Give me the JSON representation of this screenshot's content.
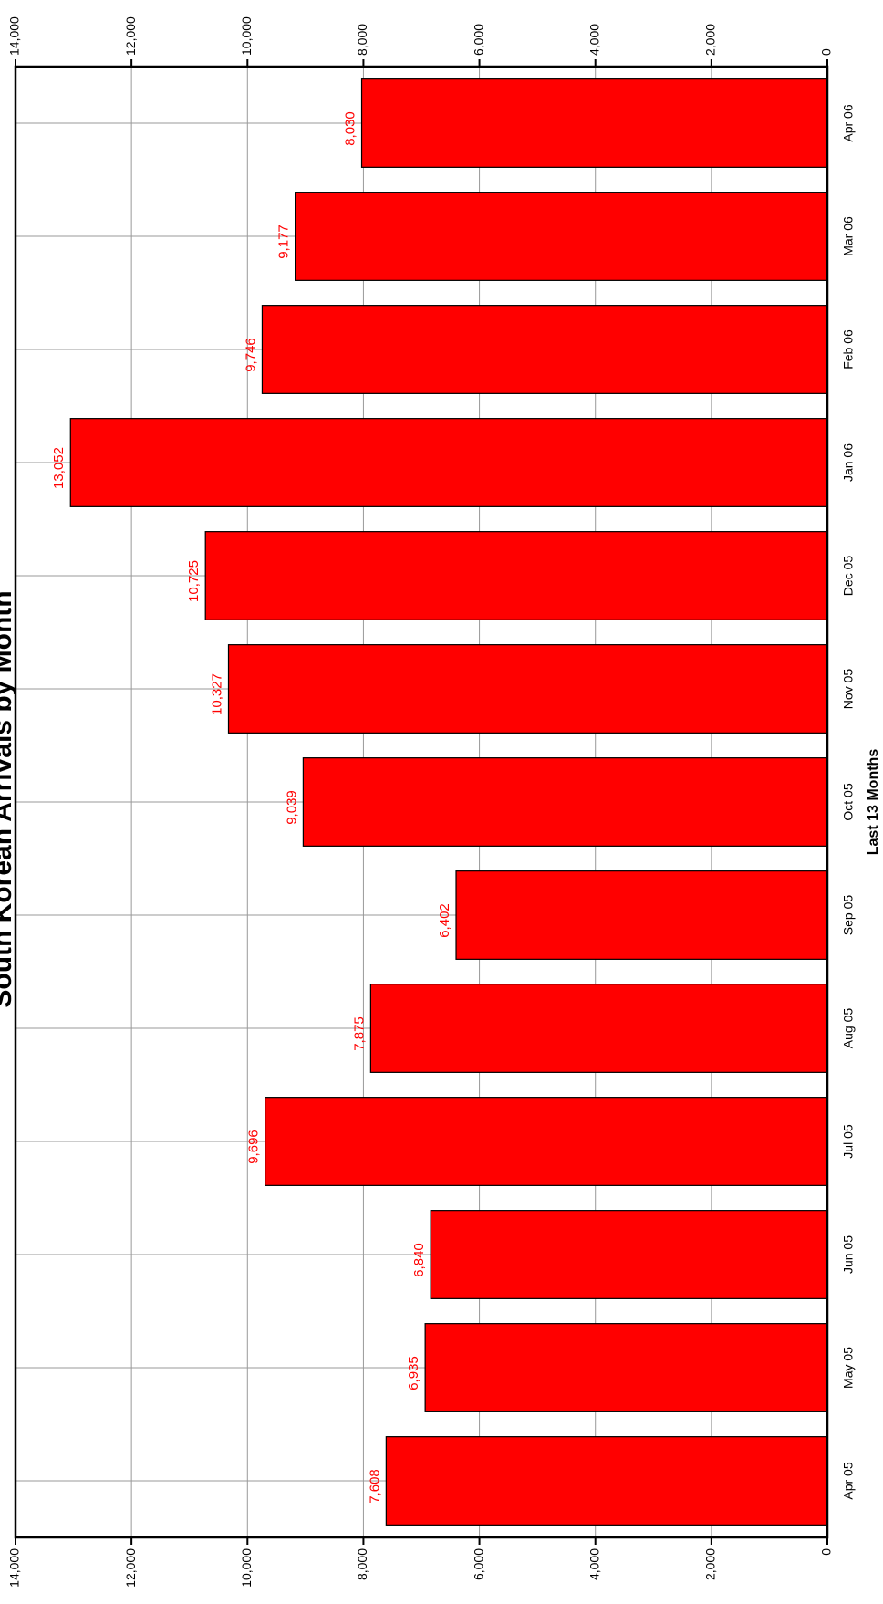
{
  "chart_data": {
    "type": "bar",
    "title": "South Korean Arrivals by Month",
    "x_label": "Last 13 Months",
    "categories": [
      "Apr 05",
      "May 05",
      "Jun 05",
      "Jul 05",
      "Aug 05",
      "Sep 05",
      "Oct 05",
      "Nov 05",
      "Dec 05",
      "Jan 06",
      "Feb 06",
      "Mar 06",
      "Apr 06"
    ],
    "values": [
      7608,
      6935,
      6840,
      9696,
      7875,
      6402,
      9039,
      10327,
      10725,
      13052,
      9746,
      9177,
      8030
    ],
    "value_labels": [
      "7,608",
      "6,935",
      "6,840",
      "9,696",
      "7,875",
      "6,402",
      "9,039",
      "10,327",
      "10,725",
      "13,052",
      "9,746",
      "9,177",
      "8,030"
    ],
    "color": "#ff0000",
    "ylim": [
      0,
      14000
    ],
    "yticks": [
      0,
      {
        "value": 2000,
        "label": "2,000"
      },
      {
        "value": 4000,
        "label": "4,000"
      },
      {
        "value": 6000,
        "label": "6,000"
      },
      {
        "value": 8000,
        "label": "8,000"
      },
      {
        "value": 10000,
        "label": "10,000"
      },
      {
        "value": 12000,
        "label": "12,000"
      },
      {
        "value": 14000,
        "label": "14,000"
      }
    ],
    "grid": true
  }
}
